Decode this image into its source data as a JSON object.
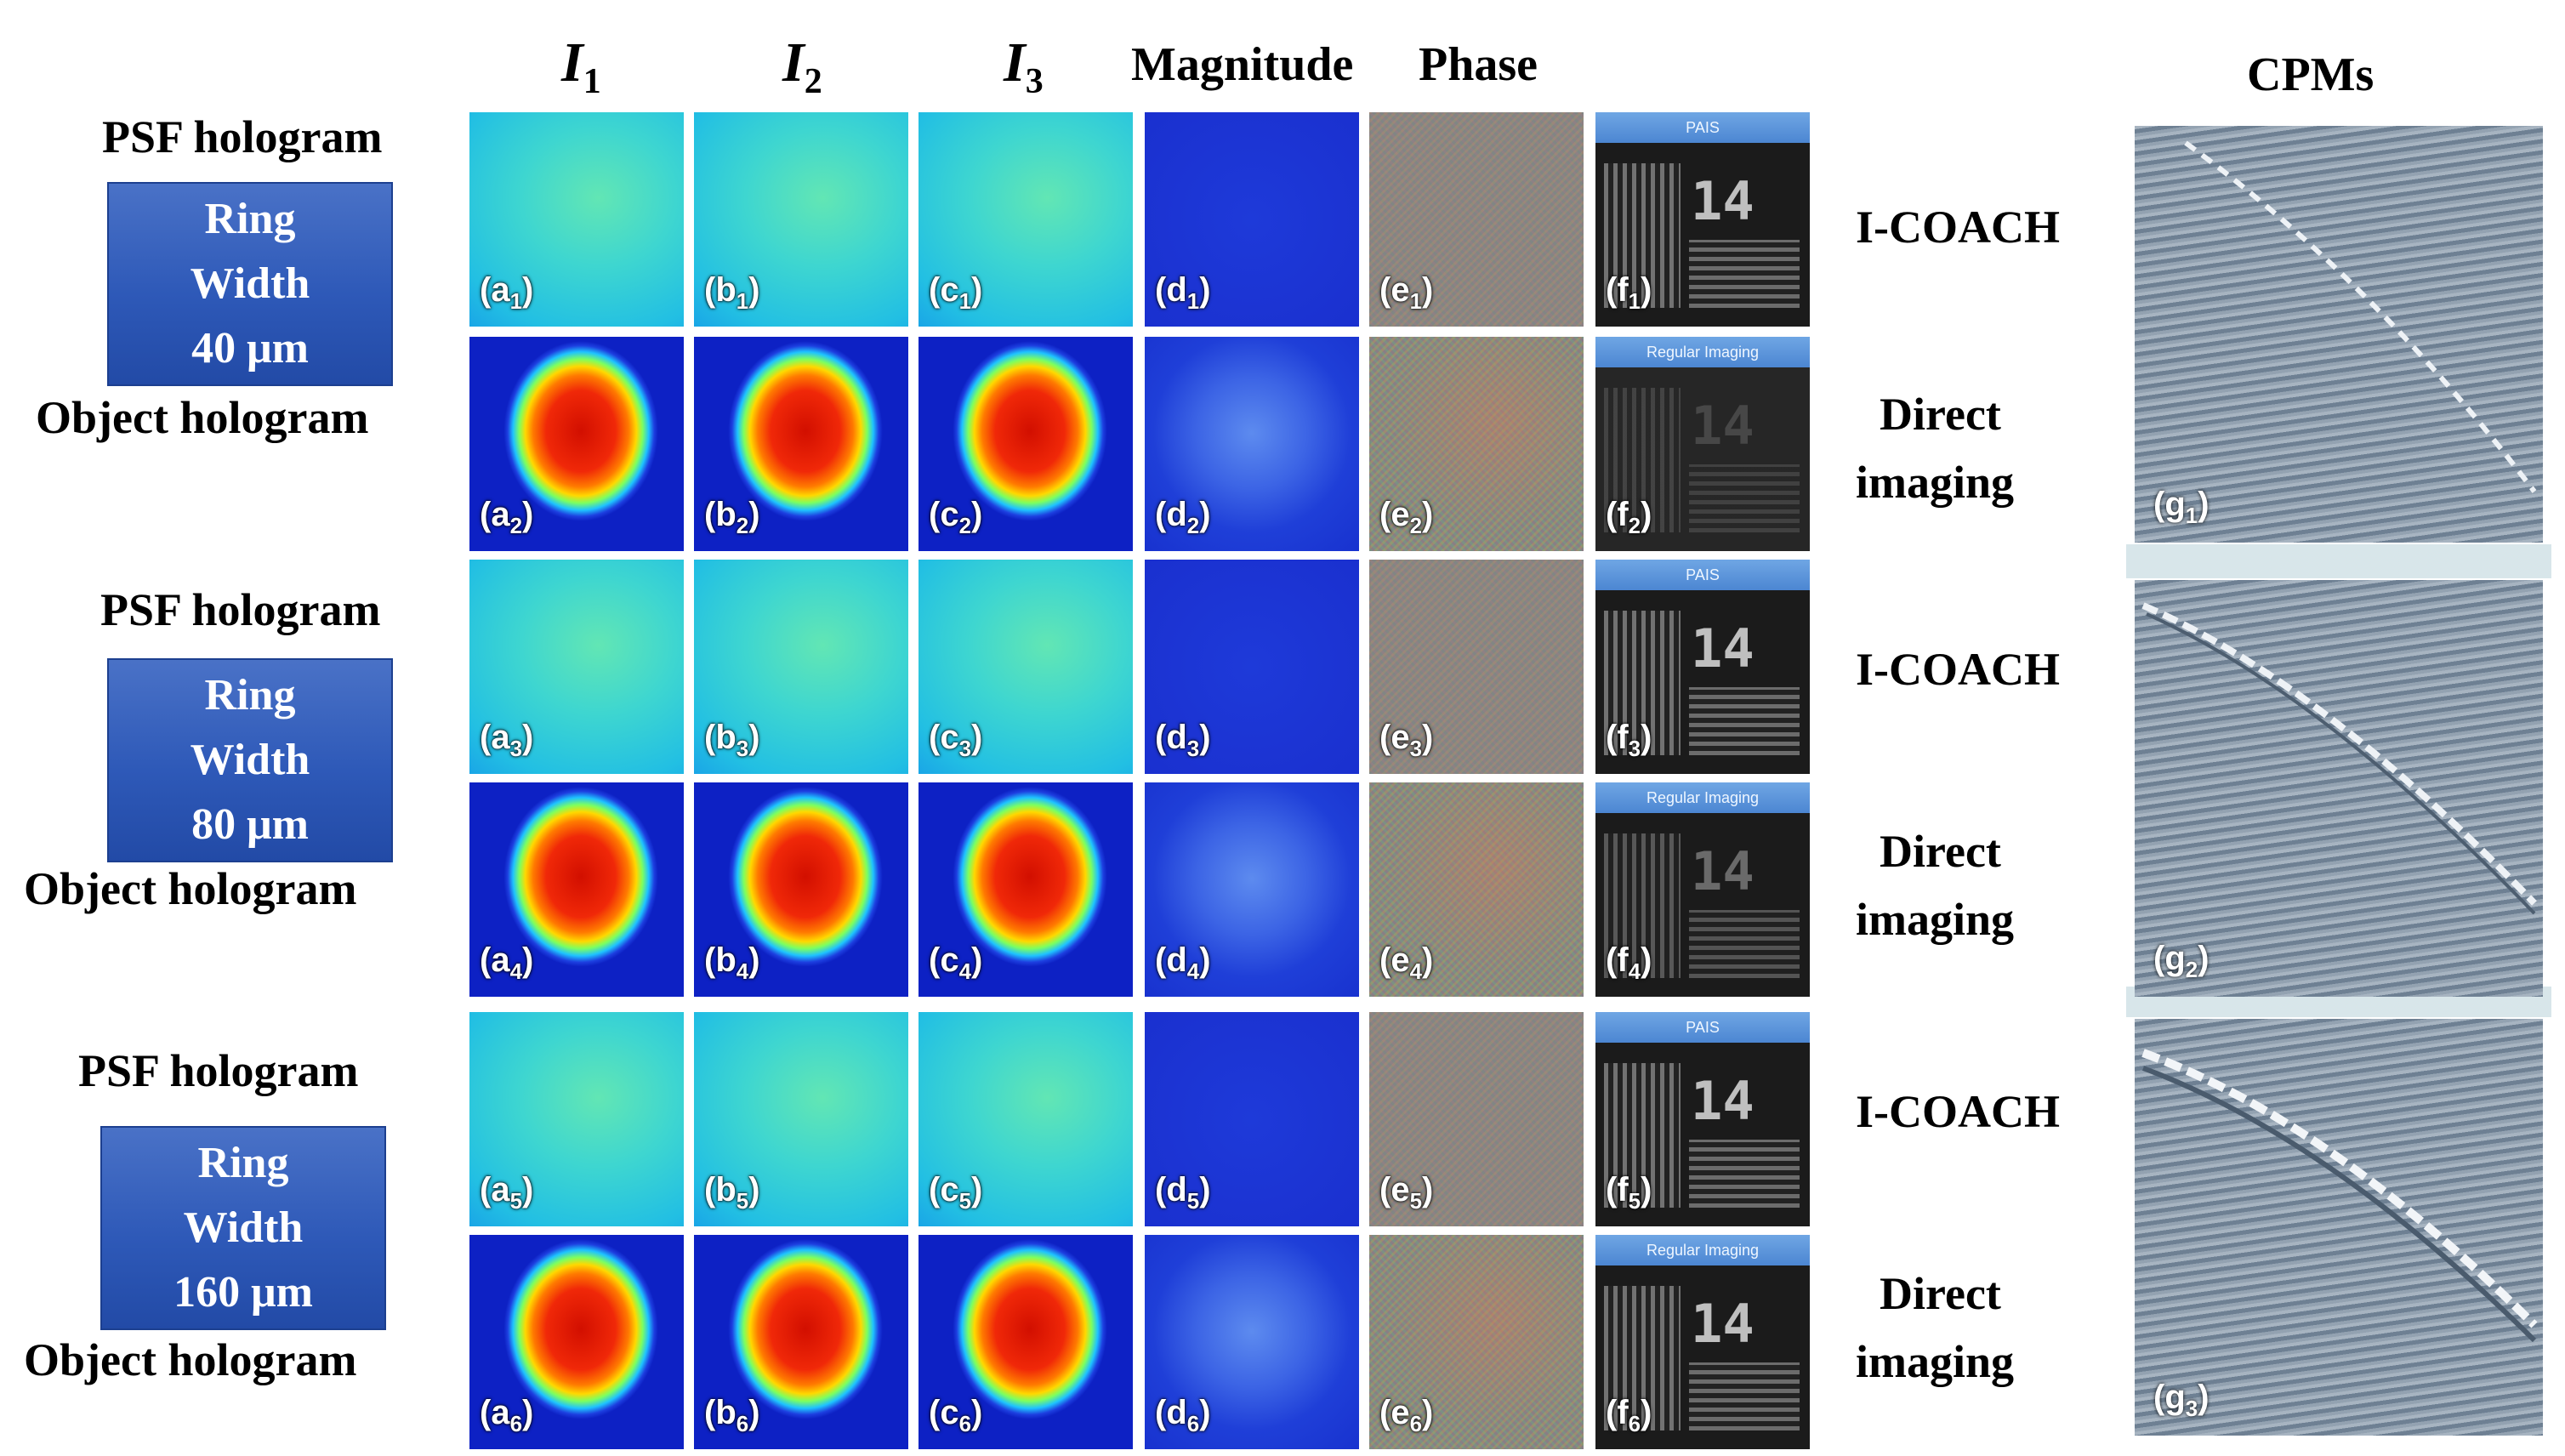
{
  "headers": {
    "i1_base": "I",
    "i1_sub": "1",
    "i2_base": "I",
    "i2_sub": "2",
    "i3_base": "I",
    "i3_sub": "3",
    "magnitude": "Magnitude",
    "phase": "Phase",
    "cpms": "CPMs"
  },
  "groups": [
    {
      "psf_label": "PSF hologram",
      "ring_line1": "Ring",
      "ring_line2": "Width",
      "ring_line3": "40 μm",
      "obj_label": "Object  hologram",
      "method1": "I-COACH",
      "method2_line1": "Direct",
      "method2_line2": "imaging"
    },
    {
      "psf_label": "PSF hologram",
      "ring_line1": "Ring",
      "ring_line2": "Width",
      "ring_line3": "80 μm",
      "obj_label": "Object  hologram",
      "method1": "I-COACH",
      "method2_line1": "Direct",
      "method2_line2": "imaging"
    },
    {
      "psf_label": "PSF hologram",
      "ring_line1": "Ring",
      "ring_line2": "Width",
      "ring_line3": "160 μm",
      "obj_label": "Object  hologram",
      "method1": "I-COACH",
      "method2_line1": "Direct",
      "method2_line2": "imaging"
    }
  ],
  "recon_titles": {
    "pais": "PAIS",
    "regular": "Regular Imaging",
    "digits": "14"
  },
  "panel_labels": {
    "a": [
      "a",
      "a",
      "a",
      "a",
      "a",
      "a"
    ],
    "b": [
      "b",
      "b",
      "b",
      "b",
      "b",
      "b"
    ],
    "c": [
      "c",
      "c",
      "c",
      "c",
      "c",
      "c"
    ],
    "d": [
      "d",
      "d",
      "d",
      "d",
      "d",
      "d"
    ],
    "e": [
      "e",
      "e",
      "e",
      "e",
      "e",
      "e"
    ],
    "f": [
      "f",
      "f",
      "f",
      "f",
      "f",
      "f"
    ],
    "g": [
      "g",
      "g",
      "g"
    ]
  },
  "subs": [
    "1",
    "2",
    "3",
    "4",
    "5",
    "6"
  ]
}
